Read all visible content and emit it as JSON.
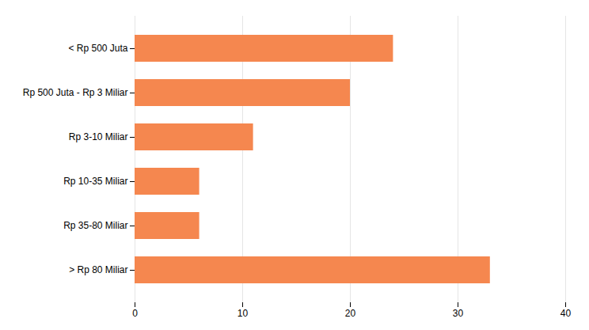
{
  "chart_data": {
    "type": "bar",
    "orientation": "horizontal",
    "categories": [
      "< Rp 500 Juta",
      "Rp 500 Juta - Rp 3 Miliar",
      "Rp 3-10 Miliar",
      "Rp 10-35 Miliar",
      "Rp 35-80 Miliar",
      "> Rp 80 Miliar"
    ],
    "values": [
      24,
      20,
      11,
      6,
      6,
      33
    ],
    "color": "#F5874F",
    "xlim": [
      0,
      40
    ],
    "xticks": [
      0,
      10,
      20,
      30,
      40
    ],
    "grid": true
  }
}
